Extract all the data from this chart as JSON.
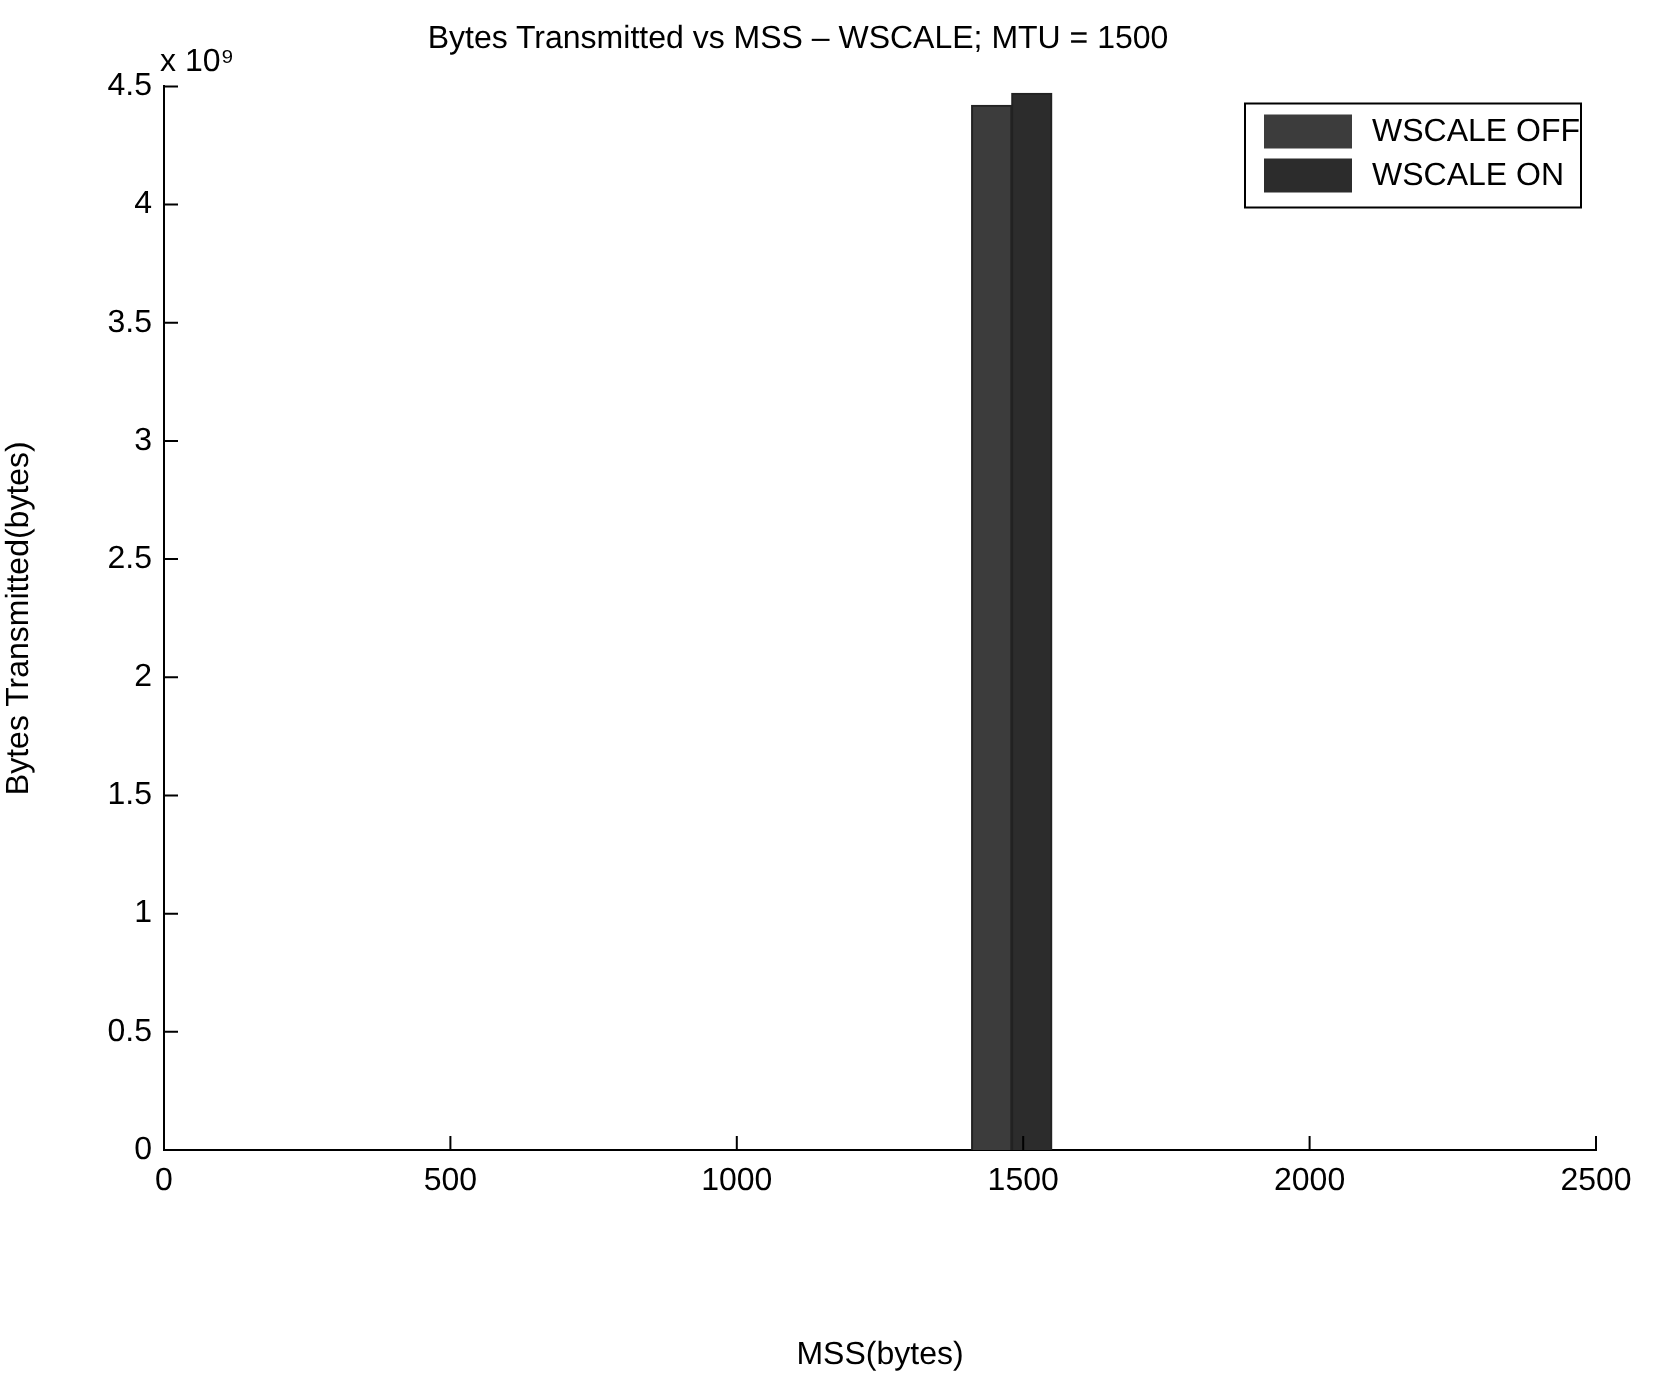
{
  "chart_data": {
    "type": "bar",
    "title": "Bytes Transmitted vs MSS – WSCALE; MTU = 1500",
    "xlabel": "MSS(bytes)",
    "ylabel": "Bytes Transmitted(bytes)",
    "series": [
      {
        "name": "WSCALE OFF",
        "color": "#3c3c3c",
        "x": [
          1445
        ],
        "values": [
          4.42
        ]
      },
      {
        "name": "WSCALE ON",
        "color": "#2c2c2c",
        "x": [
          1515
        ],
        "values": [
          4.47
        ]
      }
    ],
    "xlim": [
      0,
      2500
    ],
    "xticks": [
      0,
      500,
      1000,
      1500,
      2000,
      2500
    ],
    "ylim": [
      0,
      4.5
    ],
    "yticks": [
      0,
      0.5,
      1,
      1.5,
      2,
      2.5,
      3,
      3.5,
      4,
      4.5
    ],
    "annotations": [
      "x 10⁹"
    ],
    "grid": false,
    "legend": "top right"
  }
}
